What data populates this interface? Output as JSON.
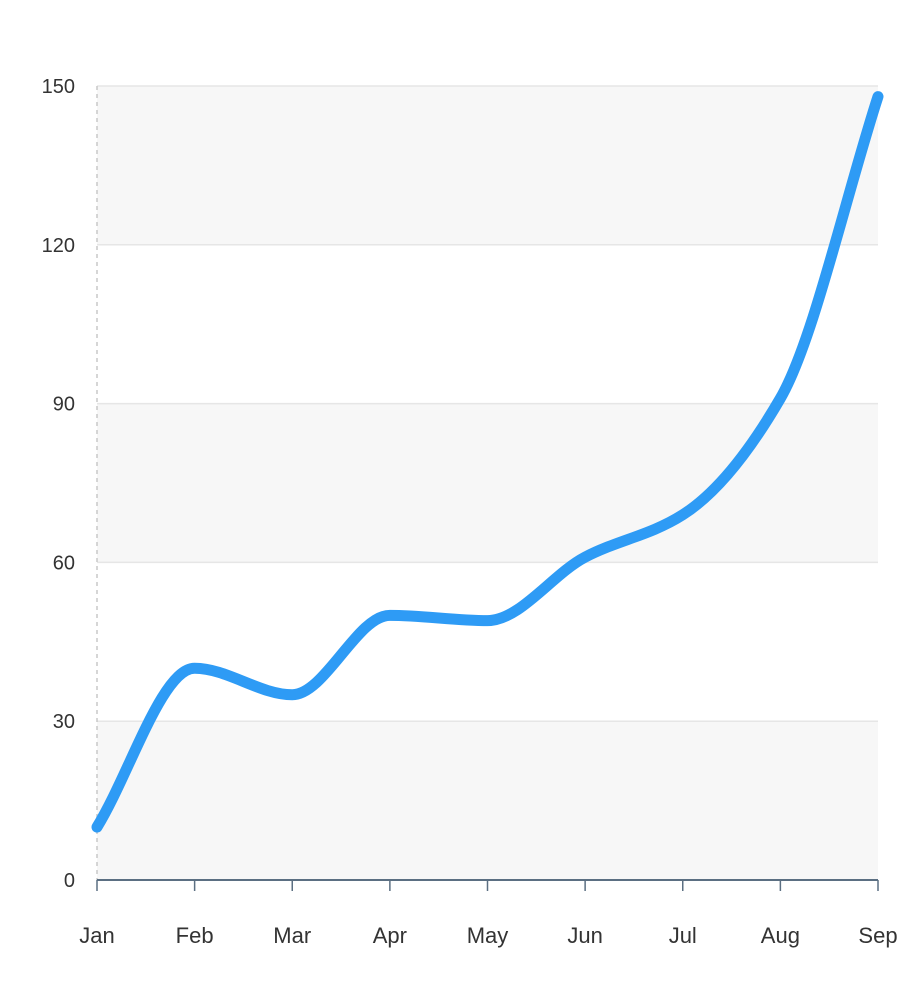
{
  "chart_data": {
    "type": "line",
    "title": "",
    "xlabel": "",
    "ylabel": "",
    "categories": [
      "Jan",
      "Feb",
      "Mar",
      "Apr",
      "May",
      "Jun",
      "Jul",
      "Aug",
      "Sep"
    ],
    "series": [
      {
        "values": [
          10,
          40,
          35,
          50,
          49,
          61,
          69,
          91,
          148
        ]
      }
    ],
    "ylim": [
      0,
      150
    ],
    "yticks": [
      "0",
      "30",
      "60",
      "90",
      "120",
      "150"
    ],
    "smooth": true,
    "grid": true,
    "banded_background": true,
    "colors": {
      "line": "#2e9bf5",
      "band": "#f7f7f7",
      "gridline": "#e6e6e6",
      "axis": "#5b6f82",
      "y_axis_dashed": "#c8c8c8"
    }
  }
}
